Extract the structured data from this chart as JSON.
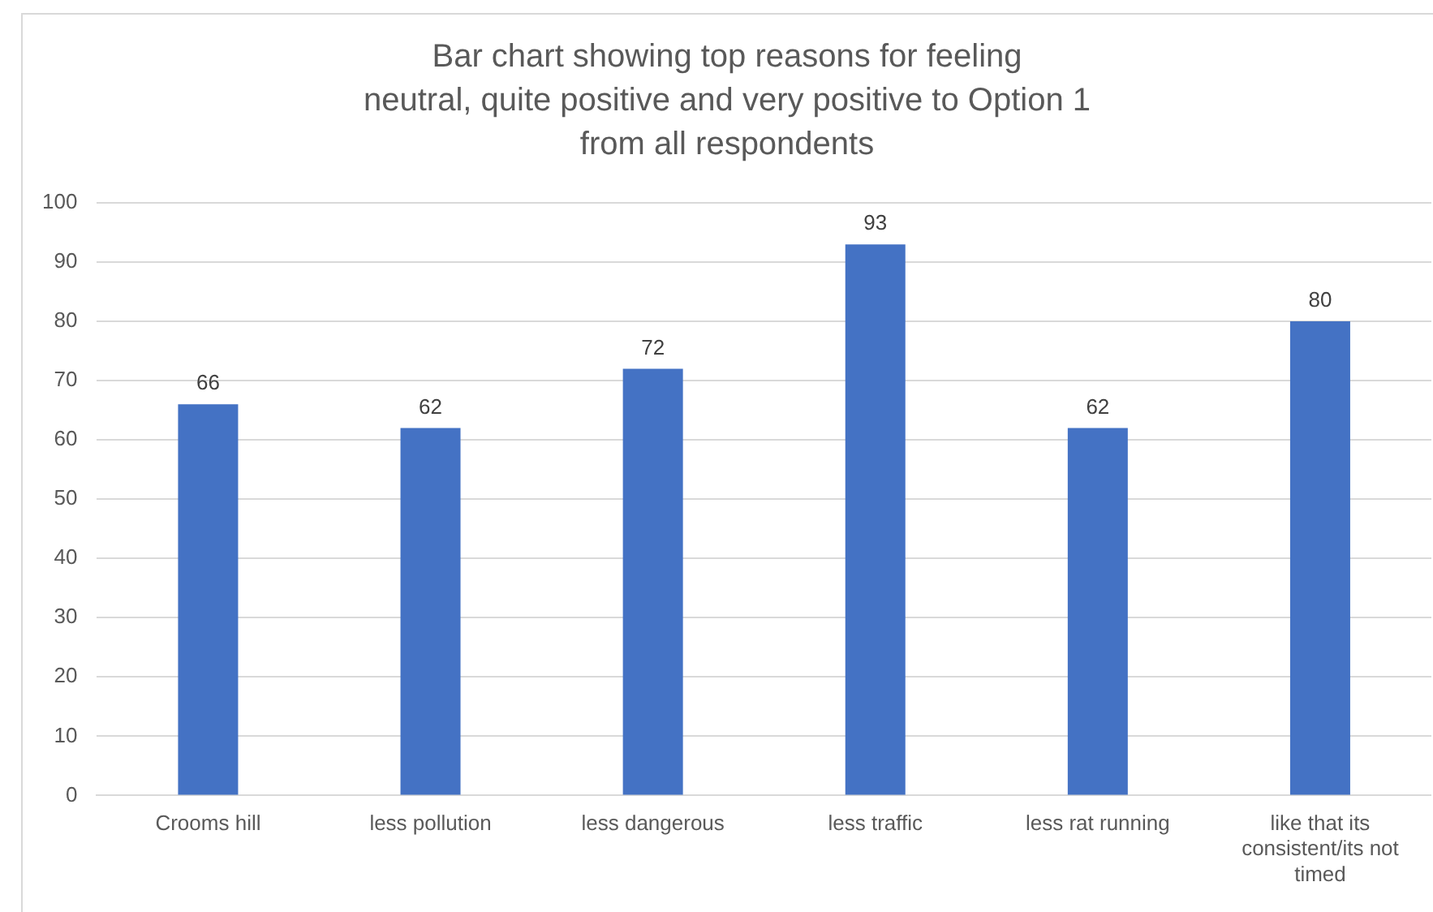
{
  "chart_data": {
    "type": "bar",
    "title": "Bar chart showing top reasons for feeling\nneutral, quite positive and very positive to Option 1\nfrom all respondents",
    "categories": [
      "Crooms hill",
      "less pollution",
      "less dangerous",
      "less traffic",
      "less rat running",
      "like that its consistent/its not timed"
    ],
    "values": [
      66,
      62,
      72,
      93,
      62,
      80
    ],
    "color": "#4472c4",
    "ylim": [
      0,
      100
    ],
    "yticks": [
      0,
      10,
      20,
      30,
      40,
      50,
      60,
      70,
      80,
      90,
      100
    ],
    "grid": "y",
    "data_labels": true
  }
}
